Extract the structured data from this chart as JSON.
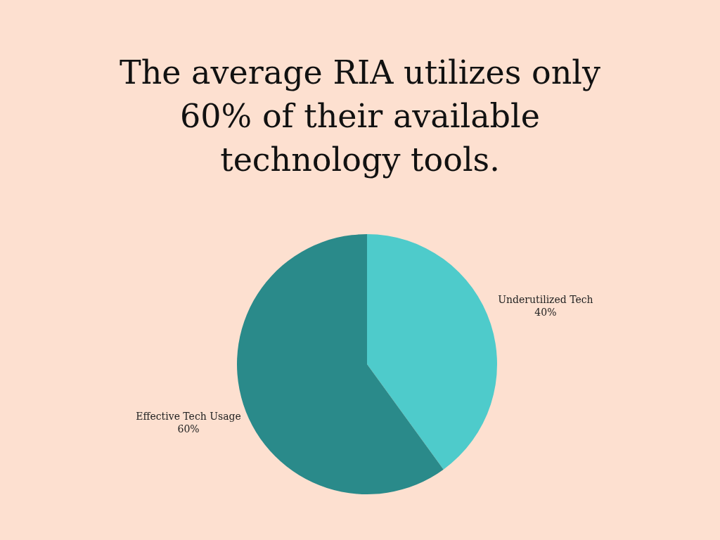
{
  "chart_data": {
    "type": "pie",
    "title": "The average RIA utilizes only 60% of their available technology tools.",
    "categories": [
      "Underutilized Tech",
      "Effective Tech Usage"
    ],
    "values": [
      40,
      60
    ],
    "colors": [
      "#4ecbcb",
      "#2a8a8a"
    ],
    "value_labels": [
      "40%",
      "60%"
    ]
  }
}
